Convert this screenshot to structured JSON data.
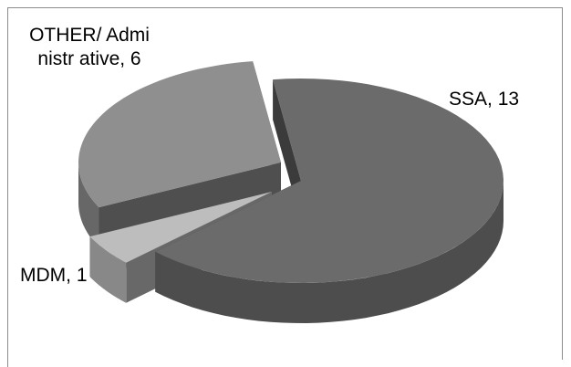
{
  "chart_data": {
    "type": "pie",
    "title": "",
    "style": "3d-exploded",
    "slices": [
      {
        "label": "SSA",
        "value": 13,
        "display": "SSA, 13",
        "color": "#6b6b6b"
      },
      {
        "label": "MDM",
        "value": 1,
        "display": "MDM, 1",
        "color": "#bdbdbd"
      },
      {
        "label": "OTHER/ Administrative",
        "value": 6,
        "display": "OTHER/ Administr ative, 6",
        "color": "#8f8f8f"
      }
    ],
    "legend": "none",
    "data_labels": "category, value"
  }
}
